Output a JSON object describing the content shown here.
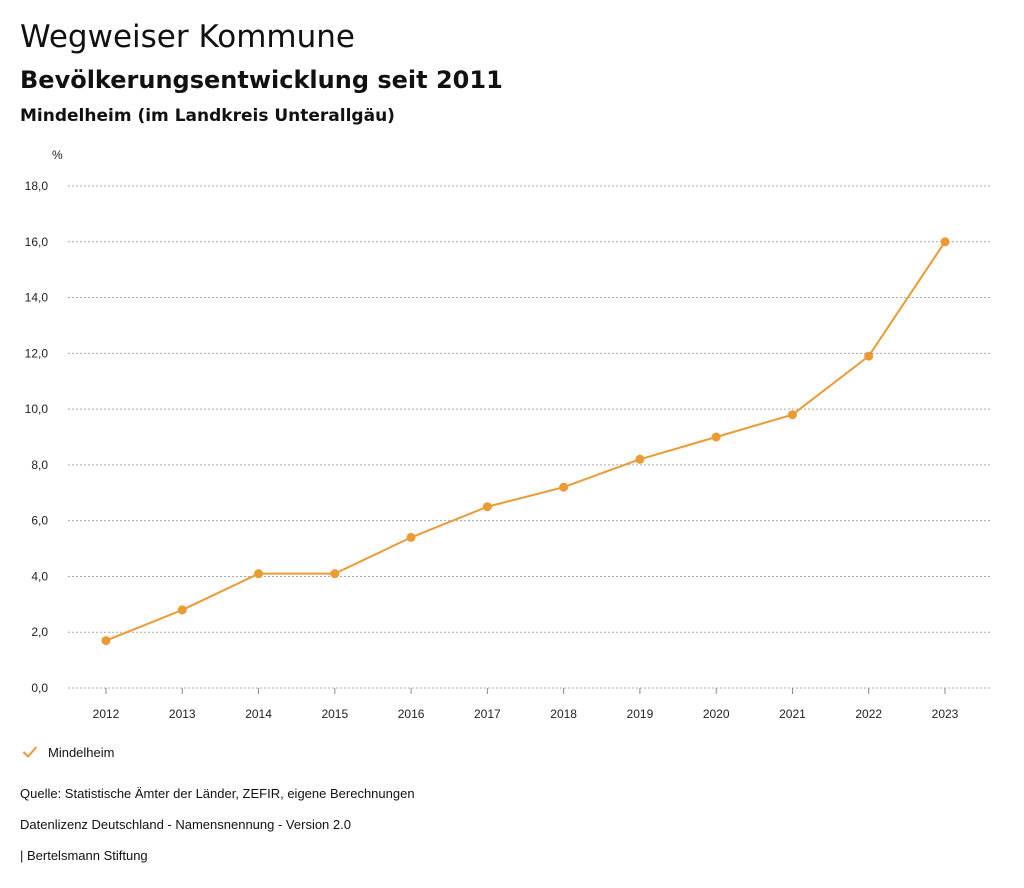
{
  "page": {
    "title": "Wegweiser Kommune",
    "subtitle": "Bevölkerungsentwicklung seit 2011",
    "region": "Mindelheim (im Landkreis Unterallgäu)"
  },
  "colors": {
    "series": "#EB9A34",
    "grid": "#aaaaaa"
  },
  "chart_data": {
    "type": "line",
    "title": "Bevölkerungsentwicklung seit 2011",
    "ylabel": "%",
    "xlabel": "",
    "ylim": [
      0,
      18
    ],
    "yticks": [
      "0,0",
      "2,0",
      "4,0",
      "6,0",
      "8,0",
      "10,0",
      "12,0",
      "14,0",
      "16,0",
      "18,0"
    ],
    "categories": [
      "2012",
      "2013",
      "2014",
      "2015",
      "2016",
      "2017",
      "2018",
      "2019",
      "2020",
      "2021",
      "2022",
      "2023"
    ],
    "series": [
      {
        "name": "Mindelheim",
        "values": [
          1.7,
          2.8,
          4.1,
          4.1,
          5.4,
          6.5,
          7.2,
          8.2,
          9.0,
          9.8,
          11.9,
          16.0
        ]
      }
    ],
    "grid": true,
    "legend": "bottom-left"
  },
  "legend": {
    "label": "Mindelheim",
    "icon": "check-icon"
  },
  "footer": {
    "source": "Quelle: Statistische Ämter der Länder, ZEFIR, eigene Berechnungen",
    "license": "Datenlizenz Deutschland - Namensnennung - Version 2.0",
    "publisher": "| Bertelsmann Stiftung"
  }
}
